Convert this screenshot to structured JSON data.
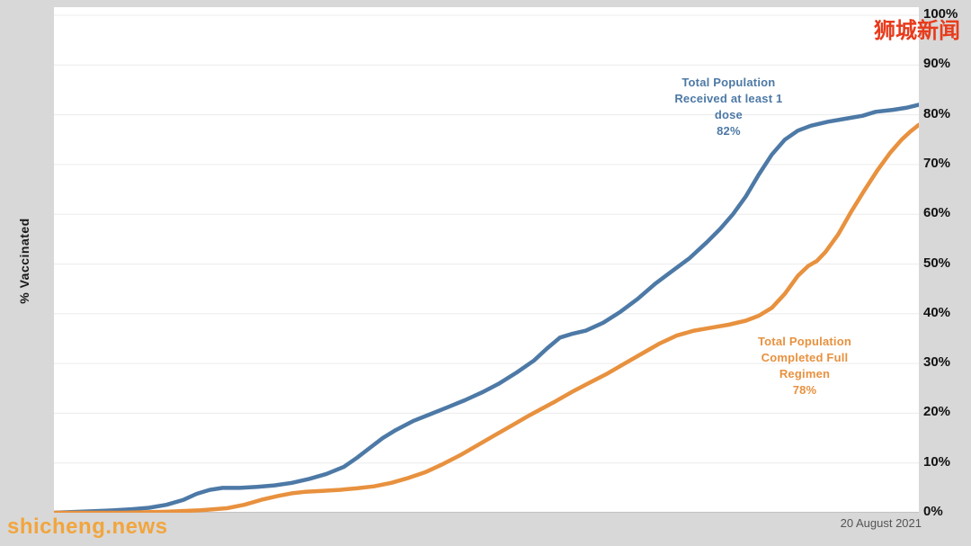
{
  "watermarks": {
    "top_right": "狮城新闻",
    "bottom_left": "shicheng.news"
  },
  "chart_data": {
    "type": "line",
    "title": "",
    "xlabel": "",
    "ylabel": "% Vaccinated",
    "ylim": [
      0,
      100
    ],
    "yticks": [
      0,
      10,
      20,
      30,
      40,
      50,
      60,
      70,
      80,
      90,
      100
    ],
    "grid": true,
    "x_end_label": "20 August 2021",
    "legend_position": "inline-annotations",
    "series": [
      {
        "id": "received-at-least-1-dose",
        "name": "Total Population Received at least 1 dose",
        "final_value_pct": 82,
        "color": "#4d79a6",
        "points": [
          [
            0.0,
            0
          ],
          [
            0.03,
            0.2
          ],
          [
            0.06,
            0.4
          ],
          [
            0.09,
            0.7
          ],
          [
            0.11,
            1.0
          ],
          [
            0.13,
            1.6
          ],
          [
            0.15,
            2.6
          ],
          [
            0.165,
            3.8
          ],
          [
            0.18,
            4.6
          ],
          [
            0.195,
            5.0
          ],
          [
            0.215,
            5.0
          ],
          [
            0.235,
            5.2
          ],
          [
            0.255,
            5.5
          ],
          [
            0.275,
            6.0
          ],
          [
            0.295,
            6.8
          ],
          [
            0.315,
            7.8
          ],
          [
            0.335,
            9.2
          ],
          [
            0.35,
            11.0
          ],
          [
            0.365,
            13.0
          ],
          [
            0.38,
            15.0
          ],
          [
            0.395,
            16.6
          ],
          [
            0.415,
            18.4
          ],
          [
            0.435,
            19.8
          ],
          [
            0.455,
            21.2
          ],
          [
            0.475,
            22.6
          ],
          [
            0.495,
            24.2
          ],
          [
            0.515,
            26.0
          ],
          [
            0.535,
            28.2
          ],
          [
            0.555,
            30.6
          ],
          [
            0.57,
            33.0
          ],
          [
            0.585,
            35.2
          ],
          [
            0.6,
            36.0
          ],
          [
            0.615,
            36.6
          ],
          [
            0.635,
            38.2
          ],
          [
            0.655,
            40.4
          ],
          [
            0.675,
            43.0
          ],
          [
            0.695,
            46.0
          ],
          [
            0.715,
            48.6
          ],
          [
            0.735,
            51.2
          ],
          [
            0.755,
            54.4
          ],
          [
            0.77,
            57.0
          ],
          [
            0.785,
            60.0
          ],
          [
            0.8,
            63.6
          ],
          [
            0.815,
            68.0
          ],
          [
            0.83,
            72.0
          ],
          [
            0.845,
            75.0
          ],
          [
            0.86,
            76.8
          ],
          [
            0.875,
            77.8
          ],
          [
            0.895,
            78.6
          ],
          [
            0.915,
            79.2
          ],
          [
            0.935,
            79.8
          ],
          [
            0.95,
            80.6
          ],
          [
            0.97,
            81.0
          ],
          [
            0.985,
            81.4
          ],
          [
            1.0,
            82.0
          ]
        ]
      },
      {
        "id": "completed-full-regimen",
        "name": "Total Population Completed Full Regimen",
        "final_value_pct": 78,
        "color": "#e8913e",
        "points": [
          [
            0.0,
            0
          ],
          [
            0.08,
            0
          ],
          [
            0.13,
            0.2
          ],
          [
            0.17,
            0.5
          ],
          [
            0.2,
            0.9
          ],
          [
            0.22,
            1.6
          ],
          [
            0.24,
            2.6
          ],
          [
            0.26,
            3.4
          ],
          [
            0.275,
            3.9
          ],
          [
            0.29,
            4.2
          ],
          [
            0.31,
            4.4
          ],
          [
            0.33,
            4.6
          ],
          [
            0.35,
            4.9
          ],
          [
            0.37,
            5.3
          ],
          [
            0.39,
            6.0
          ],
          [
            0.41,
            7.0
          ],
          [
            0.43,
            8.2
          ],
          [
            0.45,
            9.8
          ],
          [
            0.47,
            11.6
          ],
          [
            0.49,
            13.6
          ],
          [
            0.51,
            15.6
          ],
          [
            0.53,
            17.6
          ],
          [
            0.55,
            19.6
          ],
          [
            0.565,
            21.0
          ],
          [
            0.58,
            22.4
          ],
          [
            0.6,
            24.4
          ],
          [
            0.62,
            26.2
          ],
          [
            0.64,
            28.0
          ],
          [
            0.66,
            30.0
          ],
          [
            0.68,
            32.0
          ],
          [
            0.7,
            34.0
          ],
          [
            0.72,
            35.6
          ],
          [
            0.74,
            36.6
          ],
          [
            0.76,
            37.2
          ],
          [
            0.78,
            37.8
          ],
          [
            0.8,
            38.6
          ],
          [
            0.815,
            39.6
          ],
          [
            0.83,
            41.2
          ],
          [
            0.845,
            44.0
          ],
          [
            0.86,
            47.6
          ],
          [
            0.872,
            49.6
          ],
          [
            0.882,
            50.6
          ],
          [
            0.892,
            52.4
          ],
          [
            0.907,
            56.0
          ],
          [
            0.922,
            60.6
          ],
          [
            0.937,
            64.8
          ],
          [
            0.952,
            68.8
          ],
          [
            0.967,
            72.4
          ],
          [
            0.98,
            75.0
          ],
          [
            0.99,
            76.6
          ],
          [
            1.0,
            78.0
          ]
        ]
      }
    ],
    "annotations": [
      {
        "id": "received-at-least-1-dose",
        "lines": [
          "Total Population",
          "Received at least 1",
          "dose",
          "82%"
        ],
        "color": "#4d79a6",
        "x": 0.78,
        "y": 81.5
      },
      {
        "id": "completed-full-regimen",
        "lines": [
          "Total Population",
          "Completed Full",
          "Regimen",
          "78%"
        ],
        "color": "#e8913e",
        "x": 0.868,
        "y": 29.5
      }
    ]
  }
}
